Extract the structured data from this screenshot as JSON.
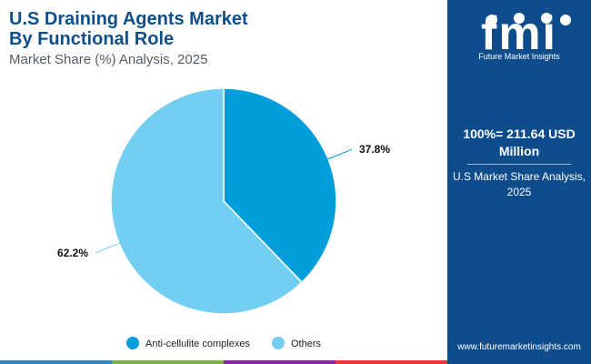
{
  "header": {
    "title_line1": "U.S Draining Agents Market",
    "title_line2": "By Functional Role",
    "subtitle": "Market Share (%) Analysis, 2025"
  },
  "chart_data": {
    "type": "pie",
    "slices": [
      {
        "label": "Anti-cellulite complexes",
        "value": 37.8,
        "display": "37.8%",
        "color": "#009fdb"
      },
      {
        "label": "Others",
        "value": 62.2,
        "display": "62.2%",
        "color": "#73cff1"
      }
    ],
    "legend_position": "bottom"
  },
  "side_panel": {
    "logo_text": "fmi",
    "logo_caption": "Future Market Insights",
    "total_label": "100%= 211.64 USD Million",
    "caption": "U.S Market Share Analysis, 2025",
    "website": "www.futuremarketinsights.com",
    "background_color": "#0e4c8c"
  },
  "bottom_bar_colors": [
    "#2e86c1",
    "#7cb342",
    "#8e24aa",
    "#e53935"
  ]
}
